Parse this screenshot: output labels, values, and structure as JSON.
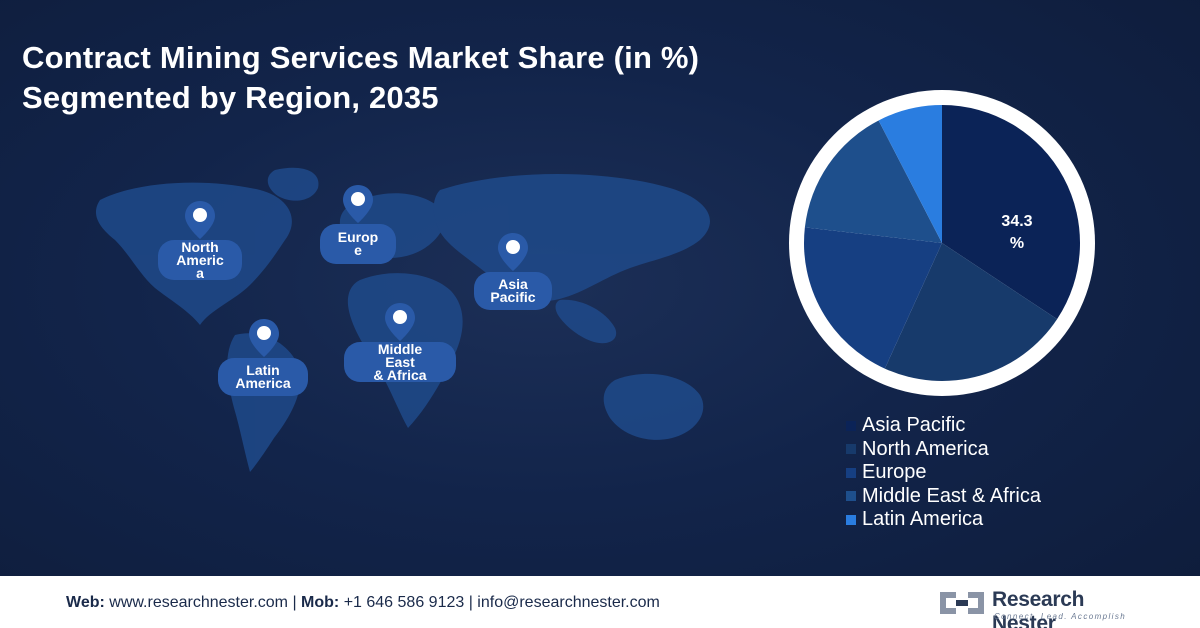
{
  "header": {
    "title_line1": "Contract Mining Services Market Share (in %)",
    "title_line2": "Segmented by Region, 2035"
  },
  "map_labels": {
    "north_america": "North\nAmeric\na",
    "europe": "Europ\ne",
    "asia_pacific": "Asia\nPacific",
    "latin_america": "Latin\nAmerica",
    "middle_east_africa": "Middle\nEast\n& Africa"
  },
  "chart_data": {
    "type": "pie",
    "slices": [
      {
        "label": "Asia Pacific",
        "value": 34.3,
        "color": "#0b2357"
      },
      {
        "label": "North America",
        "value": 22.5,
        "color": "#173a6b"
      },
      {
        "label": "Europe",
        "value": 20.0,
        "color": "#163f82"
      },
      {
        "label": "Middle East & Africa",
        "value": 15.6,
        "color": "#1e4f8c"
      },
      {
        "label": "Latin America",
        "value": 7.6,
        "color": "#2a7de0"
      }
    ],
    "data_labels": [
      {
        "label": "Asia Pacific",
        "text": "34.3\n%"
      }
    ],
    "legend_position": "bottom-right"
  },
  "footer": {
    "web_label": "Web:",
    "web_value": " www.researchnester.com | ",
    "mob_label": "Mob:",
    "mob_value": " +1 646 586 9123 | info@researchnester.com",
    "logo_name": "Research Nester",
    "logo_tagline": "Connect. Lead. Accomplish"
  },
  "colors": {
    "background": "#12244a",
    "pin": "#2a5aa8",
    "ring": "#ffffff"
  }
}
